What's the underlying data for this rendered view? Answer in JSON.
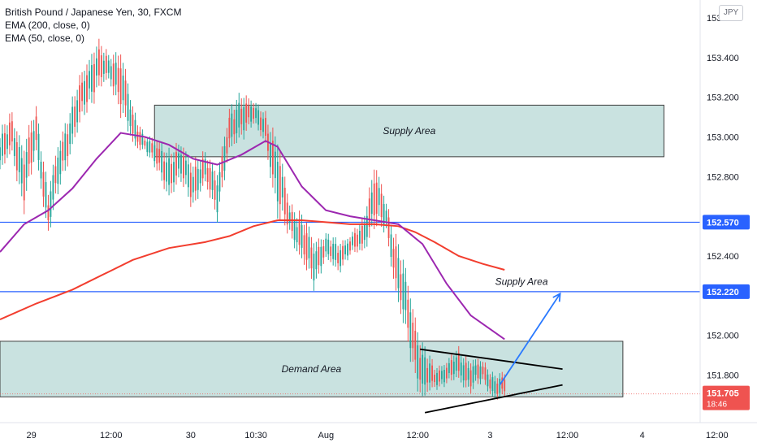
{
  "legend": {
    "symbol": "British Pound / Japanese Yen, 30, FXCM",
    "ema200": "EMA (200, close, 0)",
    "ema50": "EMA (50, close, 0)"
  },
  "currency_button": "JPY",
  "colors": {
    "up": "#26a69a",
    "down": "#ef5350",
    "ema200": "#f23d2e",
    "ema50": "#9c27b0",
    "hline": "#2962ff",
    "zone_fill": "#c9e2e0",
    "zone_border": "#3d3d3d",
    "arrow": "#2979ff",
    "price_tag": "#ef5350"
  },
  "chart_data": {
    "type": "candlestick",
    "y_axis": {
      "range": [
        151.56,
        153.69
      ],
      "ticks": [
        "153.600",
        "153.400",
        "153.200",
        "153.000",
        "152.800",
        "152.400",
        "152.000",
        "151.800"
      ]
    },
    "x_axis": {
      "ticks": [
        "29",
        "12:00",
        "30",
        "10:30",
        "Aug",
        "12:00",
        "3",
        "12:00",
        "4",
        "12:00"
      ],
      "range_bars": [
        0,
        290
      ]
    },
    "horizontal_lines": [
      {
        "label": "152.570",
        "value": 152.57
      },
      {
        "label": "152.220",
        "value": 152.22
      }
    ],
    "current_price": {
      "label": "151.705",
      "countdown": "18:46",
      "value": 151.705
    },
    "zones": [
      {
        "label": "Supply Area",
        "y_top": 153.16,
        "y_bottom": 152.9,
        "x_start": 64,
        "x_end": 275
      },
      {
        "label": "Demand Area",
        "y_top": 151.97,
        "y_bottom": 151.69,
        "x_start": 0,
        "x_end": 258
      }
    ],
    "annotations": [
      {
        "label": "Supply Area",
        "x": 216,
        "y": 152.255
      }
    ],
    "triangle": {
      "upper": [
        [
          174,
          151.93
        ],
        [
          233,
          151.83
        ]
      ],
      "lower": [
        [
          176,
          151.61
        ],
        [
          233,
          151.75
        ]
      ]
    },
    "projection_arrow": {
      "from": [
        207,
        151.75
      ],
      "to": [
        232,
        152.21
      ]
    },
    "ema200": [
      [
        0,
        152.08
      ],
      [
        15,
        152.16
      ],
      [
        30,
        152.23
      ],
      [
        45,
        152.32
      ],
      [
        55,
        152.38
      ],
      [
        70,
        152.44
      ],
      [
        85,
        152.47
      ],
      [
        95,
        152.5
      ],
      [
        105,
        152.55
      ],
      [
        115,
        152.58
      ],
      [
        125,
        152.58
      ],
      [
        135,
        152.57
      ],
      [
        145,
        152.56
      ],
      [
        155,
        152.56
      ],
      [
        165,
        152.55
      ],
      [
        172,
        152.52
      ],
      [
        180,
        152.47
      ],
      [
        190,
        152.4
      ],
      [
        200,
        152.36
      ],
      [
        209,
        152.33
      ]
    ],
    "ema50": [
      [
        0,
        152.42
      ],
      [
        10,
        152.56
      ],
      [
        20,
        152.63
      ],
      [
        30,
        152.74
      ],
      [
        40,
        152.89
      ],
      [
        50,
        153.02
      ],
      [
        60,
        153.0
      ],
      [
        70,
        152.96
      ],
      [
        80,
        152.89
      ],
      [
        90,
        152.86
      ],
      [
        100,
        152.91
      ],
      [
        110,
        152.98
      ],
      [
        115,
        152.95
      ],
      [
        125,
        152.75
      ],
      [
        135,
        152.63
      ],
      [
        145,
        152.6
      ],
      [
        155,
        152.58
      ],
      [
        165,
        152.56
      ],
      [
        175,
        152.46
      ],
      [
        185,
        152.26
      ],
      [
        195,
        152.1
      ],
      [
        209,
        151.98
      ]
    ],
    "candle_samples": [
      [
        0,
        152.85,
        152.98
      ],
      [
        5,
        152.95,
        153.08
      ],
      [
        10,
        152.7,
        152.9
      ],
      [
        15,
        152.95,
        153.1
      ],
      [
        20,
        152.55,
        152.7
      ],
      [
        25,
        152.8,
        152.95
      ],
      [
        30,
        153.0,
        153.15
      ],
      [
        35,
        153.15,
        153.3
      ],
      [
        40,
        153.28,
        153.45
      ],
      [
        45,
        153.3,
        153.38
      ],
      [
        50,
        153.2,
        153.4
      ],
      [
        55,
        152.98,
        153.1
      ],
      [
        60,
        152.95,
        153.0
      ],
      [
        65,
        152.85,
        152.95
      ],
      [
        70,
        152.75,
        152.9
      ],
      [
        75,
        152.8,
        152.92
      ],
      [
        80,
        152.7,
        152.85
      ],
      [
        85,
        152.78,
        152.88
      ],
      [
        90,
        152.65,
        152.8
      ],
      [
        95,
        152.95,
        153.08
      ],
      [
        100,
        153.05,
        153.2
      ],
      [
        105,
        153.08,
        153.15
      ],
      [
        110,
        153.0,
        153.1
      ],
      [
        115,
        152.65,
        152.9
      ],
      [
        120,
        152.55,
        152.65
      ],
      [
        125,
        152.4,
        152.55
      ],
      [
        130,
        152.3,
        152.45
      ],
      [
        135,
        152.4,
        152.48
      ],
      [
        140,
        152.35,
        152.45
      ],
      [
        145,
        152.42,
        152.48
      ],
      [
        150,
        152.45,
        152.55
      ],
      [
        155,
        152.6,
        152.8
      ],
      [
        160,
        152.55,
        152.65
      ],
      [
        165,
        152.2,
        152.4
      ],
      [
        170,
        151.95,
        152.15
      ],
      [
        175,
        151.72,
        151.9
      ],
      [
        180,
        151.75,
        151.82
      ],
      [
        185,
        151.78,
        151.85
      ],
      [
        190,
        151.8,
        151.9
      ],
      [
        195,
        151.75,
        151.85
      ],
      [
        200,
        151.78,
        151.85
      ],
      [
        205,
        151.7,
        151.78
      ]
    ]
  }
}
